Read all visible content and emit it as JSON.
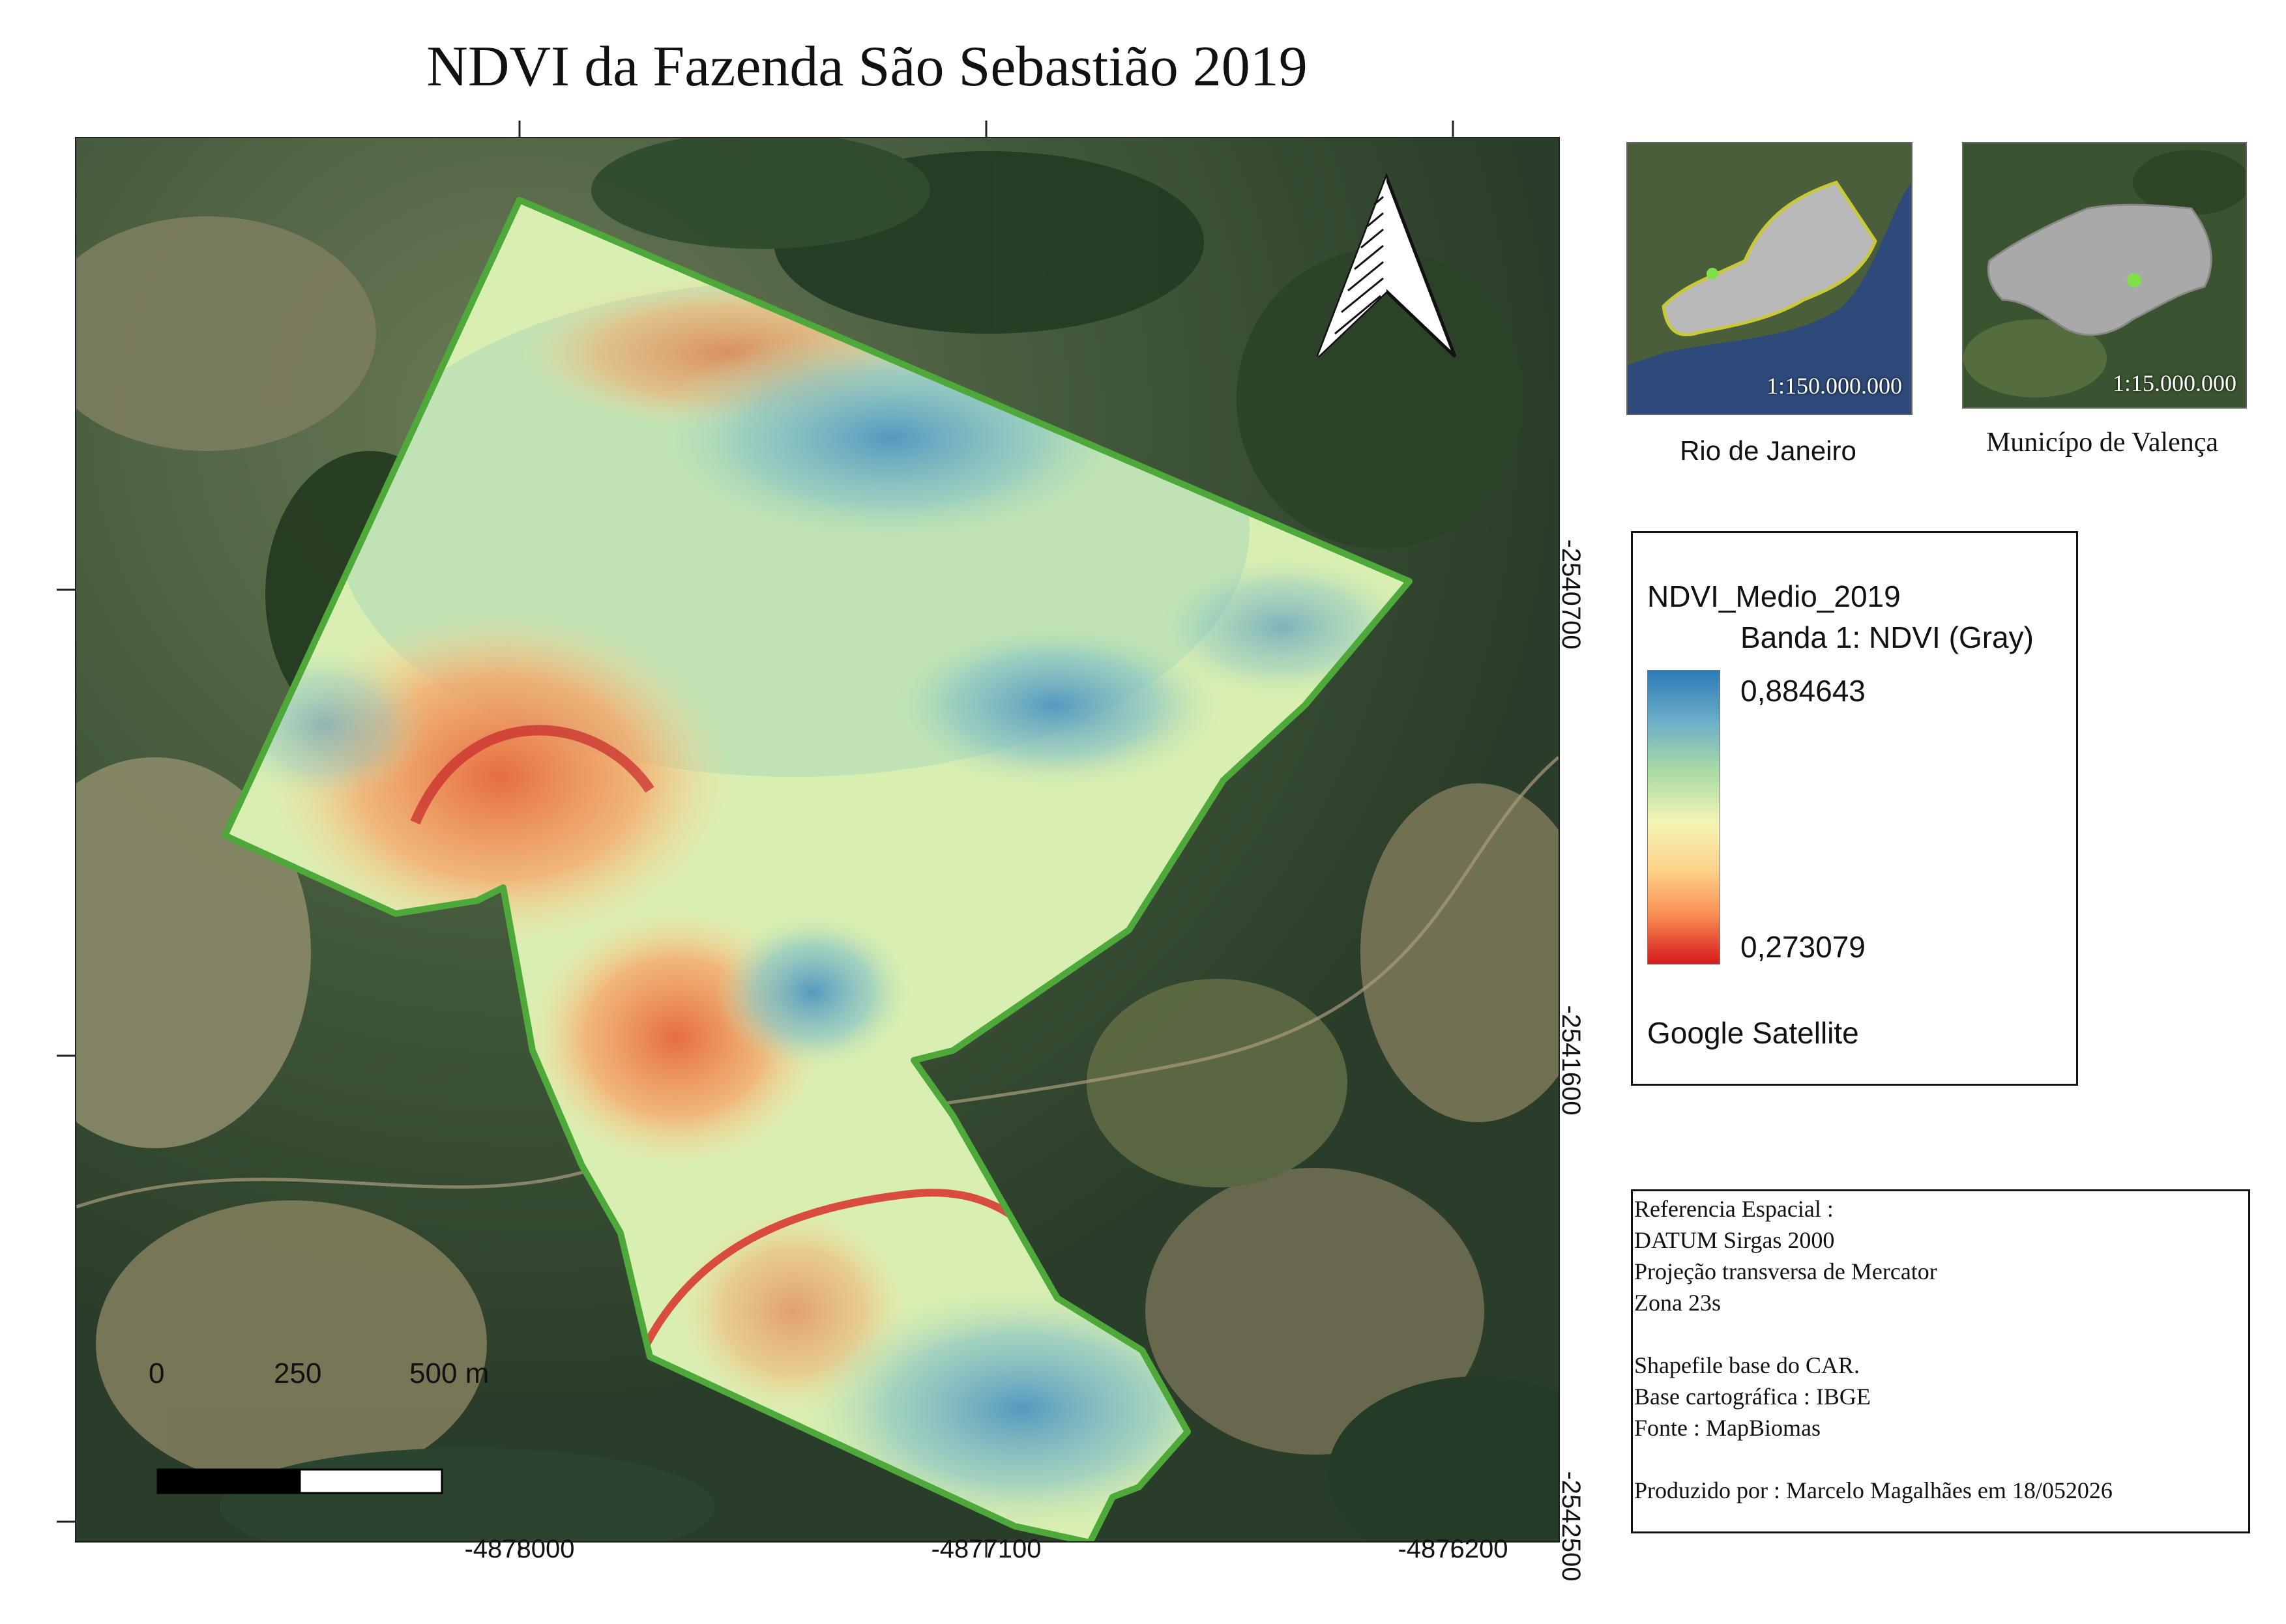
{
  "title": "NDVI da Fazenda São Sebastião 2019",
  "map": {
    "basemap": "Google Satellite",
    "boundary_color": "#4fa83a",
    "x_ticks": [
      "-4878000",
      "-4877100",
      "-4876200"
    ],
    "y_ticks": [
      "-2540700",
      "-2541600",
      "-2542500"
    ],
    "north_arrow_icon": "north-arrow-icon",
    "scale_bar": {
      "labels": [
        "0",
        "250",
        "500 m"
      ]
    }
  },
  "insets": [
    {
      "scale": "1:150.000.000",
      "caption": "Rio de Janeiro"
    },
    {
      "scale": "1:15.000.000",
      "caption": "Municípo de Valença"
    }
  ],
  "legend": {
    "layer": "NDVI_Medio_2019",
    "band": "Banda 1: NDVI (Gray)",
    "max": "0,884643",
    "min": "0,273079",
    "basemap": "Google Satellite",
    "ramp_colors": [
      "#2b7bb9",
      "#abdda4",
      "#ffffbf",
      "#fdae61",
      "#d7191c"
    ]
  },
  "info": {
    "lines": [
      "Referencia Espacial :",
      "DATUM Sirgas 2000",
      "Projeção transversa de Mercator",
      "Zona 23s",
      "",
      "Shapefile base do CAR.",
      "Base cartográfica : IBGE",
      "Fonte : MapBiomas",
      "",
      "Produzido por : Marcelo Magalhães em 18/052026"
    ]
  }
}
